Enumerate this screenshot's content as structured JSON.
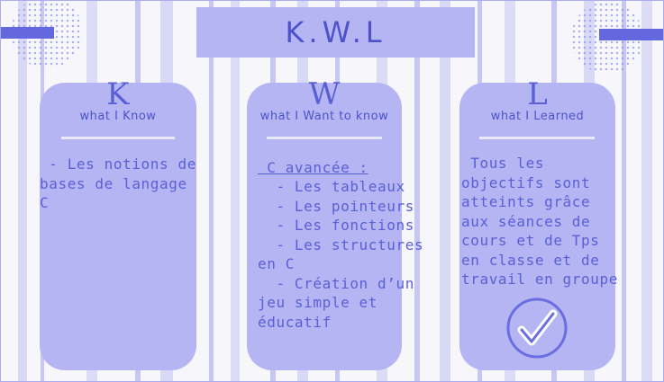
{
  "title": "K.W.L",
  "columns": [
    {
      "letter": "K",
      "subtitle": "what I Know",
      "body": " - Les notions de\nbases de langage\nC"
    },
    {
      "letter": "W",
      "subtitle": "what I Want to know",
      "heading": " C avancée :",
      "body": "  - Les tableaux\n  - Les pointeurs\n  - Les fonctions\n  - Les structures\nen C\n  - Création d’un\njeu simple et\néducatif"
    },
    {
      "letter": "L",
      "subtitle": "what I Learned",
      "body": " Tous les\nobjectifs sont\natteints grâce\naux séances de\ncours et de Tps\nen classe et de\ntravail en groupe"
    }
  ],
  "icons": {
    "decoration": "check-circle-icon"
  },
  "colors": {
    "card": "#b5b5f4",
    "text": "#5a5fd6",
    "accent_bar": "#6468df"
  }
}
